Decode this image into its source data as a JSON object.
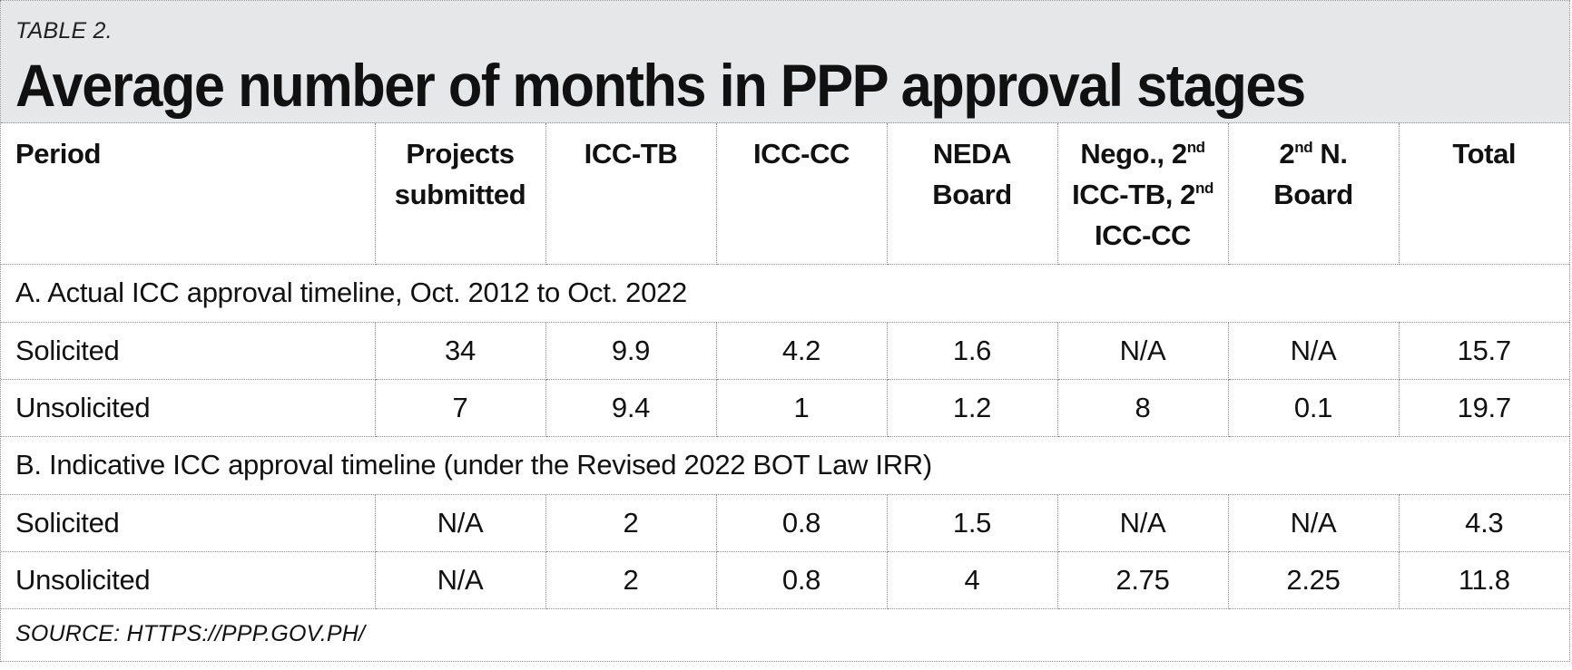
{
  "table": {
    "label": "TABLE 2.",
    "title": "Average number of months in PPP approval stages",
    "headers": [
      {
        "text": "Period"
      },
      {
        "text": "Projects submitted"
      },
      {
        "text": "ICC-TB"
      },
      {
        "text": "ICC-CC"
      },
      {
        "text": "NEDA Board"
      },
      {
        "text": "Nego., 2nd ICC-TB, 2nd ICC-CC"
      },
      {
        "text": "2nd N. Board"
      },
      {
        "text": "Total"
      }
    ],
    "header_parts": {
      "nego_a": "Nego., 2",
      "nego_sup1": "nd",
      "nego_b": "ICC-TB, 2",
      "nego_sup2": "nd",
      "nego_c": "ICC-CC",
      "board_a": "2",
      "board_sup": "nd",
      "board_b": " N.",
      "board_c": "Board",
      "projects_a": "Projects",
      "projects_b": "submitted",
      "neda_a": "NEDA",
      "neda_b": "Board"
    },
    "sections": [
      {
        "title": "A. Actual ICC approval timeline, Oct. 2012 to Oct. 2022",
        "rows": [
          [
            "Solicited",
            "34",
            "9.9",
            "4.2",
            "1.6",
            "N/A",
            "N/A",
            "15.7"
          ],
          [
            "Unsolicited",
            "7",
            "9.4",
            "1",
            "1.2",
            "8",
            "0.1",
            "19.7"
          ]
        ]
      },
      {
        "title": "B. Indicative ICC approval timeline (under the Revised 2022 BOT Law IRR)",
        "rows": [
          [
            "Solicited",
            "N/A",
            "2",
            "0.8",
            "1.5",
            "N/A",
            "N/A",
            "4.3"
          ],
          [
            "Unsolicited",
            "N/A",
            "2",
            "0.8",
            "4",
            "2.75",
            "2.25",
            "11.8"
          ]
        ]
      }
    ],
    "source": "SOURCE: HTTPS://PPP.GOV.PH/"
  }
}
